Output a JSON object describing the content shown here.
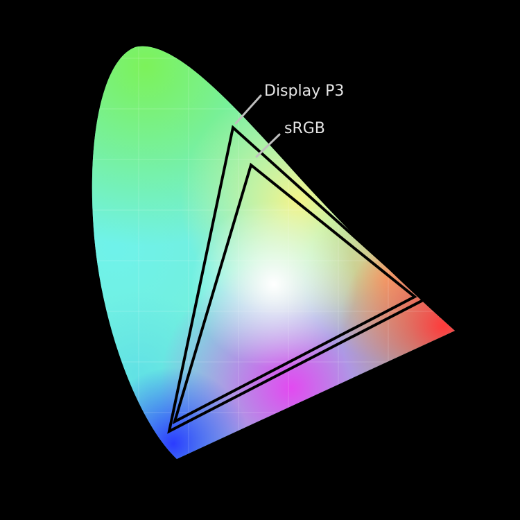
{
  "labels": {
    "display_p3": "Display P3",
    "srgb": "sRGB"
  },
  "colors": {
    "background": "#000000",
    "gamut_outline": "#000000",
    "label_text": "#e6e6e6",
    "leader_line": "#bfbfbf",
    "spectral_green": "#7cf25a",
    "spectral_cyan": "#6ff2ea",
    "spectral_blue": "#2b3cff",
    "spectral_red": "#ff3a3a",
    "purple_line": "#e24af0",
    "white_point": "#ffffff",
    "yellow": "#f4f48a"
  }
}
